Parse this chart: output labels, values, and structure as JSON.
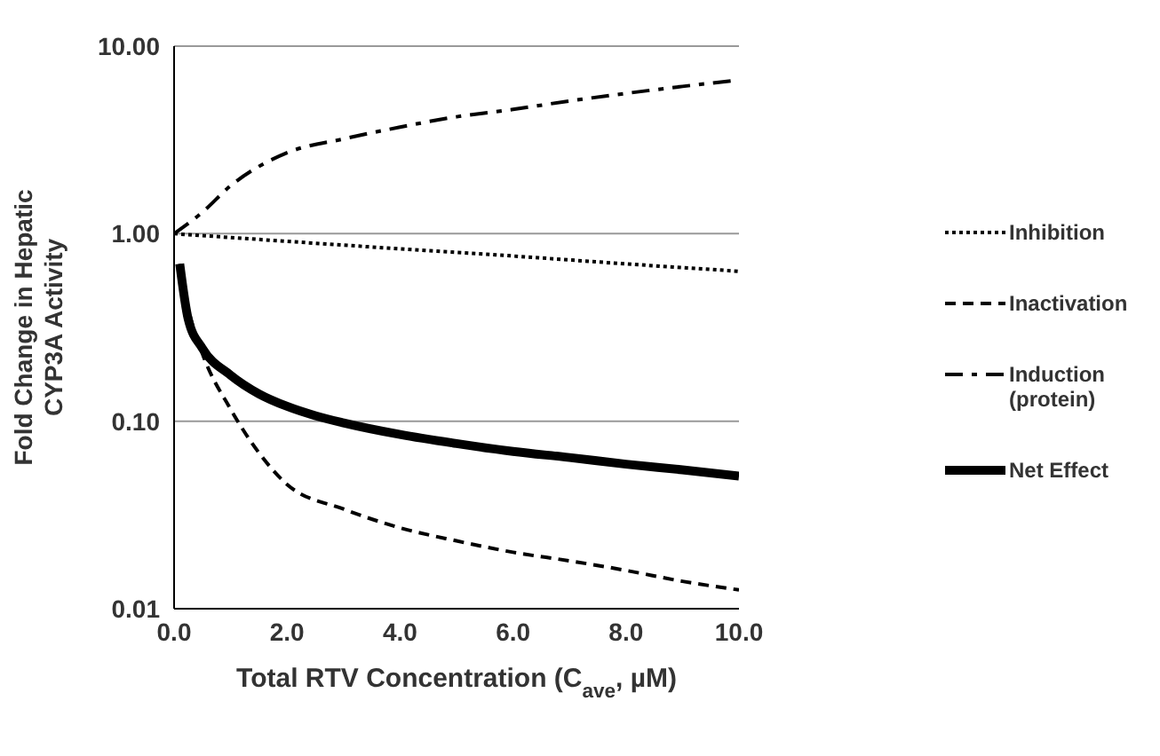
{
  "chart_data": {
    "type": "line",
    "xlabel": "Total RTV Concentration (C$_{ave}$, µM)",
    "ylabel": "Fold Change in Hepatic CYP3A Activity",
    "log": "y",
    "grid": "y",
    "legend": "right",
    "marker": "none",
    "xlim": [
      0,
      10
    ],
    "xticks": [
      {
        "value": 0,
        "label": "0.0"
      },
      {
        "value": 2,
        "label": "2.0"
      },
      {
        "value": 4,
        "label": "4.0"
      },
      {
        "value": 6,
        "label": "6.0"
      },
      {
        "value": 8,
        "label": "8.0"
      },
      {
        "value": 10,
        "label": "10.0"
      }
    ],
    "ylim": [
      0.01,
      10
    ],
    "yticks": [
      {
        "value": 0.01,
        "label": "0.01"
      },
      {
        "value": 0.1,
        "label": "0.10"
      },
      {
        "value": 1,
        "label": "1.00"
      },
      {
        "value": 10,
        "label": "10.00"
      }
    ],
    "series": [
      {
        "name": "Inhibition",
        "color": "#000000",
        "line_style": "dotted",
        "x": [
          0,
          2,
          4,
          6,
          8,
          10
        ],
        "values": [
          1,
          0.91,
          0.83,
          0.76,
          0.69,
          0.63
        ]
      },
      {
        "name": "Inactivation",
        "color": "#000000",
        "line_style": "dashed",
        "x": [
          0.1,
          0.25,
          0.5,
          1,
          1.5,
          2,
          3,
          4,
          5,
          6,
          7,
          8,
          9,
          10
        ],
        "values": [
          0.69,
          0.4,
          0.23,
          0.116,
          0.068,
          0.046,
          0.034,
          0.027,
          0.023,
          0.02,
          0.018,
          0.016,
          0.014,
          0.0126
        ]
      },
      {
        "name": "Induction (protein)",
        "color": "#000000",
        "line_style": "dashdot",
        "x": [
          0,
          0.5,
          1,
          2,
          3,
          4,
          5,
          6,
          7,
          8,
          9,
          10
        ],
        "values": [
          1,
          1.3,
          1.8,
          2.7,
          3.2,
          3.7,
          4.2,
          4.6,
          5.1,
          5.6,
          6.1,
          6.6
        ]
      },
      {
        "name": "Net Effect",
        "color": "#000000",
        "line_style": "solid",
        "x": [
          0.1,
          0.25,
          0.5,
          1,
          1.5,
          2,
          2.5,
          3,
          4,
          5,
          6,
          7,
          8,
          9,
          10
        ],
        "values": [
          0.69,
          0.35,
          0.245,
          0.176,
          0.14,
          0.12,
          0.107,
          0.098,
          0.085,
          0.076,
          0.069,
          0.064,
          0.059,
          0.055,
          0.051
        ]
      }
    ]
  }
}
